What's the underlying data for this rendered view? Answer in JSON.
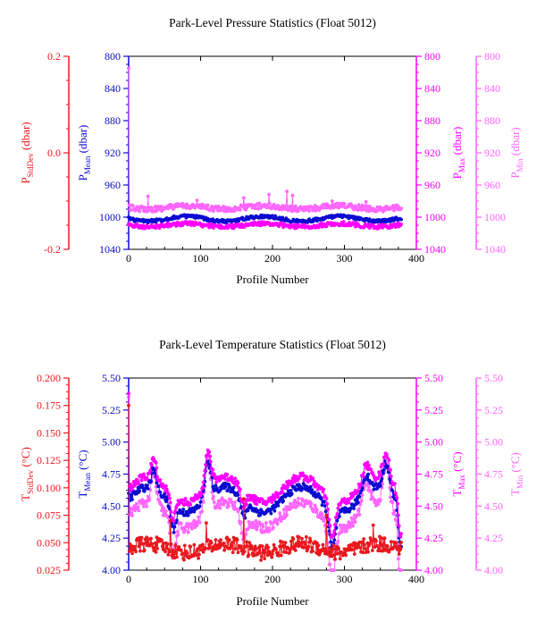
{
  "colors": {
    "stddev": "#e8181e",
    "mean": "#0a0ad2",
    "max": "#ff00ff",
    "min": "#ff66ff",
    "frame": "#000000"
  },
  "chart_data": [
    {
      "type": "scatter",
      "title": "Park-Level Pressure Statistics (Float 5012)",
      "xlabel": "Profile Number",
      "xlim": [
        0,
        400
      ],
      "xticks": [
        "0",
        "100",
        "200",
        "300",
        "400"
      ],
      "grid": false,
      "y_axes": [
        {
          "id": "sd",
          "label_main": "P",
          "label_sub": "StdDev",
          "label_unit": " (dbar)",
          "lim": [
            -0.2,
            0.2
          ],
          "reversed": false,
          "ticks": [
            "-0.2",
            "0.0",
            "0.2"
          ],
          "side": "left-outer",
          "color_key": "stddev"
        },
        {
          "id": "mean",
          "label_main": "P",
          "label_sub": "Mean",
          "label_unit": " (dbar)",
          "lim": [
            800,
            1040
          ],
          "reversed": true,
          "ticks": [
            "800",
            "840",
            "880",
            "920",
            "960",
            "1000",
            "1040"
          ],
          "side": "left-inner",
          "color_key": "mean"
        },
        {
          "id": "max",
          "label_main": "P",
          "label_sub": "Max",
          "label_unit": " (dbar)",
          "lim": [
            800,
            1040
          ],
          "reversed": true,
          "ticks": [
            "800",
            "840",
            "880",
            "920",
            "960",
            "1000",
            "1040"
          ],
          "side": "right-inner",
          "color_key": "max"
        },
        {
          "id": "min",
          "label_main": "P",
          "label_sub": "Min",
          "label_unit": " (dbar)",
          "lim": [
            800,
            1040
          ],
          "reversed": true,
          "ticks": [
            "800",
            "840",
            "880",
            "920",
            "960",
            "1000",
            "1040"
          ],
          "side": "right-outer",
          "color_key": "min"
        }
      ],
      "series": [
        {
          "axis": "min",
          "color_key": "min",
          "n": 380,
          "base": 988,
          "amp": 2,
          "noise": 3.5,
          "first": 815,
          "spikes": [
            [
              27,
              974
            ],
            [
              95,
              979
            ],
            [
              160,
              976
            ],
            [
              195,
              972
            ],
            [
              220,
              968
            ],
            [
              228,
              973
            ],
            [
              283,
              980
            ],
            [
              330,
              981
            ]
          ]
        },
        {
          "axis": "mean",
          "color_key": "mean",
          "n": 380,
          "base": 1002,
          "amp": 3,
          "noise": 2,
          "first": 1000,
          "spikes": []
        },
        {
          "axis": "max",
          "color_key": "max",
          "n": 380,
          "base": 1010,
          "amp": 2,
          "noise": 2.5,
          "first": 1008,
          "spikes": []
        }
      ]
    },
    {
      "type": "scatter",
      "title": "Park-Level Temperature Statistics (Float 5012)",
      "xlabel": "Profile Number",
      "xlim": [
        0,
        400
      ],
      "xticks": [
        "0",
        "100",
        "200",
        "300",
        "400"
      ],
      "grid": false,
      "y_axes": [
        {
          "id": "sd",
          "label_main": "T",
          "label_sub": "StdDev",
          "label_unit": " (°C)",
          "lim": [
            0.025,
            0.2
          ],
          "reversed": false,
          "ticks": [
            "0.025",
            "0.050",
            "0.075",
            "0.100",
            "0.125",
            "0.150",
            "0.175",
            "0.200"
          ],
          "side": "left-outer",
          "color_key": "stddev"
        },
        {
          "id": "mean",
          "label_main": "T",
          "label_sub": "Mean",
          "label_unit": " (°C)",
          "lim": [
            4.0,
            5.5
          ],
          "reversed": false,
          "ticks": [
            "4.00",
            "4.25",
            "4.50",
            "4.75",
            "5.00",
            "5.25",
            "5.50"
          ],
          "side": "left-inner",
          "color_key": "mean"
        },
        {
          "id": "max",
          "label_main": "T",
          "label_sub": "Max",
          "label_unit": " (°C)",
          "lim": [
            4.0,
            5.5
          ],
          "reversed": false,
          "ticks": [
            "4.00",
            "4.25",
            "4.50",
            "4.75",
            "5.00",
            "5.25",
            "5.50"
          ],
          "side": "right-inner",
          "color_key": "max"
        },
        {
          "id": "min",
          "label_main": "T",
          "label_sub": "Min",
          "label_unit": " (°C)",
          "lim": [
            4.0,
            5.5
          ],
          "reversed": false,
          "ticks": [
            "4.00",
            "4.25",
            "4.50",
            "4.75",
            "5.00",
            "5.25",
            "5.50"
          ],
          "side": "right-outer",
          "color_key": "min"
        }
      ],
      "series": [
        {
          "axis": "min",
          "color_key": "min",
          "n": 380,
          "base": 4.43,
          "amp": 0.1,
          "noise": 0.04,
          "first": 5.35,
          "profile": "temp",
          "spikes": []
        },
        {
          "axis": "mean",
          "color_key": "mean",
          "n": 380,
          "base": 4.55,
          "amp": 0.1,
          "noise": 0.03,
          "first": 4.6,
          "profile": "temp",
          "spikes": []
        },
        {
          "axis": "max",
          "color_key": "max",
          "n": 380,
          "base": 4.63,
          "amp": 0.1,
          "noise": 0.03,
          "first": 5.38,
          "profile": "temp",
          "spikes": []
        },
        {
          "axis": "sd",
          "color_key": "stddev",
          "n": 380,
          "base": 0.045,
          "amp": 0.004,
          "noise": 0.007,
          "first": 0.175,
          "spikes": [
            [
              58,
              0.07
            ],
            [
              108,
              0.068
            ],
            [
              160,
              0.09
            ],
            [
              275,
              0.075
            ],
            [
              340,
              0.066
            ]
          ]
        }
      ]
    }
  ]
}
